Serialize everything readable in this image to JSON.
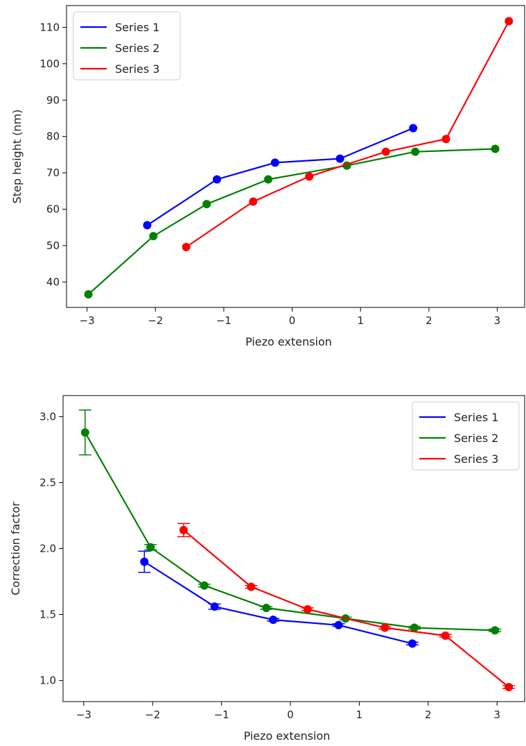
{
  "chart_data": [
    {
      "type": "line",
      "title": "",
      "xlabel": "Piezo extension",
      "ylabel": "Step height (nm)",
      "xlim": [
        -3.3,
        3.4
      ],
      "ylim": [
        33,
        116
      ],
      "xticks": [
        -3,
        -2,
        -1,
        0,
        1,
        2,
        3
      ],
      "xtick_labels": [
        "−3",
        "−2",
        "−1",
        "0",
        "1",
        "2",
        "3"
      ],
      "yticks": [
        40,
        50,
        60,
        70,
        80,
        90,
        100,
        110
      ],
      "ytick_labels": [
        "40",
        "50",
        "60",
        "70",
        "80",
        "90",
        "100",
        "110"
      ],
      "grid": false,
      "legend": "top-left",
      "series": [
        {
          "name": "Series 1",
          "color": "#0000ff",
          "x": [
            -2.12,
            -1.1,
            -0.25,
            0.7,
            1.77
          ],
          "y": [
            55.6,
            68.2,
            72.8,
            73.9,
            82.3
          ]
        },
        {
          "name": "Series 2",
          "color": "#008000",
          "x": [
            -2.98,
            -2.03,
            -1.25,
            -0.35,
            0.8,
            1.8,
            2.97
          ],
          "y": [
            36.6,
            52.6,
            61.4,
            68.2,
            72.0,
            75.8,
            76.6
          ]
        },
        {
          "name": "Series 3",
          "color": "#ff0000",
          "x": [
            -1.55,
            -0.57,
            0.25,
            1.37,
            2.25,
            3.17
          ],
          "y": [
            49.6,
            62.1,
            69.0,
            75.8,
            79.3,
            111.7
          ]
        }
      ]
    },
    {
      "type": "line",
      "title": "",
      "xlabel": "Piezo extension",
      "ylabel": "Correction factor",
      "xlim": [
        -3.3,
        3.4
      ],
      "ylim": [
        0.84,
        3.16
      ],
      "xticks": [
        -3,
        -2,
        -1,
        0,
        1,
        2,
        3
      ],
      "xtick_labels": [
        "−3",
        "−2",
        "−1",
        "0",
        "1",
        "2",
        "3"
      ],
      "yticks": [
        1.0,
        1.5,
        2.0,
        2.5,
        3.0
      ],
      "ytick_labels": [
        "1.0",
        "1.5",
        "2.0",
        "2.5",
        "3.0"
      ],
      "grid": false,
      "legend": "top-right",
      "series": [
        {
          "name": "Series 1",
          "color": "#0000ff",
          "x": [
            -2.12,
            -1.1,
            -0.25,
            0.7,
            1.77
          ],
          "y": [
            1.9,
            1.56,
            1.46,
            1.42,
            1.28
          ],
          "yerr": [
            0.08,
            0.02,
            0.01,
            0.01,
            0.01
          ]
        },
        {
          "name": "Series 2",
          "color": "#008000",
          "x": [
            -2.98,
            -2.03,
            -1.25,
            -0.35,
            0.8,
            1.8,
            2.97
          ],
          "y": [
            2.88,
            2.01,
            1.72,
            1.55,
            1.47,
            1.4,
            1.38
          ],
          "yerr": [
            0.17,
            0.02,
            0.01,
            0.01,
            0.01,
            0.01,
            0.01
          ]
        },
        {
          "name": "Series 3",
          "color": "#ff0000",
          "x": [
            -1.55,
            -0.57,
            0.25,
            1.37,
            2.25,
            3.17
          ],
          "y": [
            2.14,
            1.71,
            1.54,
            1.4,
            1.34,
            0.95
          ],
          "yerr": [
            0.05,
            0.01,
            0.01,
            0.01,
            0.01,
            0.01
          ]
        }
      ]
    }
  ]
}
